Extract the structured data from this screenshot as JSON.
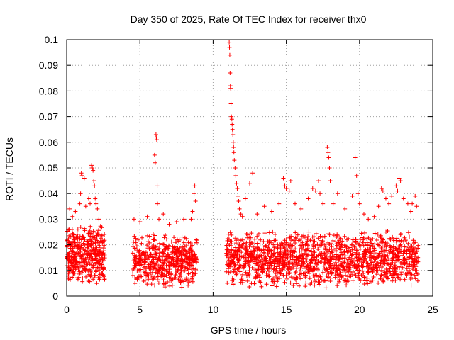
{
  "chart_data": {
    "type": "scatter",
    "title": "Day 350 of 2025, Rate Of TEC Index for receiver thx0",
    "xlabel": "GPS time / hours",
    "ylabel": "ROTI / TECUs",
    "xlim": [
      0,
      25
    ],
    "ylim": [
      0,
      0.1
    ],
    "x_ticks": [
      0,
      5,
      10,
      15,
      20,
      25
    ],
    "x_tick_labels": [
      "0",
      "5",
      "10",
      "15",
      "20",
      "25"
    ],
    "y_ticks": [
      0,
      0.01,
      0.02,
      0.03,
      0.04,
      0.05,
      0.06,
      0.07,
      0.08,
      0.09,
      0.1
    ],
    "y_tick_labels": [
      "0",
      "0.01",
      "0.02",
      "0.03",
      "0.04",
      "0.05",
      "0.06",
      "0.07",
      "0.08",
      "0.09",
      "0.1"
    ],
    "grid": true,
    "marker": "+",
    "color": "#ff0000",
    "series": [
      {
        "name": "ROTI",
        "dense_bands": [
          {
            "x_range": [
              0.0,
              2.6
            ],
            "y_range": [
              0.004,
              0.028
            ],
            "count": 420
          },
          {
            "x_range": [
              4.5,
              8.9
            ],
            "y_range": [
              0.003,
              0.025
            ],
            "count": 520
          },
          {
            "x_range": [
              10.9,
              24.0
            ],
            "y_range": [
              0.003,
              0.026
            ],
            "count": 1500
          }
        ],
        "points": [
          [
            0.2,
            0.034
          ],
          [
            0.4,
            0.031
          ],
          [
            0.6,
            0.033
          ],
          [
            0.9,
            0.036
          ],
          [
            0.95,
            0.04
          ],
          [
            1.0,
            0.048
          ],
          [
            1.05,
            0.047
          ],
          [
            1.2,
            0.046
          ],
          [
            1.3,
            0.035
          ],
          [
            1.5,
            0.038
          ],
          [
            1.6,
            0.036
          ],
          [
            1.7,
            0.051
          ],
          [
            1.75,
            0.05
          ],
          [
            1.8,
            0.049
          ],
          [
            1.85,
            0.045
          ],
          [
            1.9,
            0.043
          ],
          [
            1.95,
            0.038
          ],
          [
            2.0,
            0.036
          ],
          [
            2.1,
            0.034
          ],
          [
            2.2,
            0.03
          ],
          [
            4.6,
            0.03
          ],
          [
            5.0,
            0.029
          ],
          [
            5.5,
            0.031
          ],
          [
            6.0,
            0.055
          ],
          [
            6.05,
            0.052
          ],
          [
            6.1,
            0.063
          ],
          [
            6.12,
            0.062
          ],
          [
            6.15,
            0.061
          ],
          [
            6.18,
            0.043
          ],
          [
            6.2,
            0.036
          ],
          [
            6.3,
            0.03
          ],
          [
            6.6,
            0.032
          ],
          [
            7.0,
            0.028
          ],
          [
            7.5,
            0.029
          ],
          [
            8.0,
            0.03
          ],
          [
            8.5,
            0.03
          ],
          [
            8.6,
            0.033
          ],
          [
            8.7,
            0.04
          ],
          [
            8.75,
            0.043
          ],
          [
            8.8,
            0.037
          ],
          [
            11.1,
            0.099
          ],
          [
            11.12,
            0.097
          ],
          [
            11.14,
            0.094
          ],
          [
            11.16,
            0.087
          ],
          [
            11.18,
            0.082
          ],
          [
            11.2,
            0.081
          ],
          [
            11.22,
            0.075
          ],
          [
            11.25,
            0.07
          ],
          [
            11.28,
            0.069
          ],
          [
            11.3,
            0.067
          ],
          [
            11.32,
            0.065
          ],
          [
            11.35,
            0.063
          ],
          [
            11.38,
            0.06
          ],
          [
            11.4,
            0.058
          ],
          [
            11.42,
            0.056
          ],
          [
            11.45,
            0.053
          ],
          [
            11.5,
            0.05
          ],
          [
            11.55,
            0.047
          ],
          [
            11.6,
            0.044
          ],
          [
            11.65,
            0.042
          ],
          [
            11.7,
            0.039
          ],
          [
            11.75,
            0.037
          ],
          [
            11.8,
            0.034
          ],
          [
            11.9,
            0.032
          ],
          [
            12.0,
            0.031
          ],
          [
            12.2,
            0.038
          ],
          [
            12.5,
            0.044
          ],
          [
            12.7,
            0.048
          ],
          [
            13.0,
            0.032
          ],
          [
            13.5,
            0.035
          ],
          [
            14.0,
            0.033
          ],
          [
            14.5,
            0.036
          ],
          [
            14.8,
            0.046
          ],
          [
            14.9,
            0.043
          ],
          [
            15.0,
            0.042
          ],
          [
            15.2,
            0.041
          ],
          [
            15.3,
            0.045
          ],
          [
            15.6,
            0.036
          ],
          [
            16.0,
            0.034
          ],
          [
            16.5,
            0.038
          ],
          [
            16.8,
            0.042
          ],
          [
            17.0,
            0.041
          ],
          [
            17.2,
            0.045
          ],
          [
            17.3,
            0.04
          ],
          [
            17.5,
            0.036
          ],
          [
            17.8,
            0.058
          ],
          [
            17.85,
            0.056
          ],
          [
            17.9,
            0.054
          ],
          [
            17.95,
            0.05
          ],
          [
            18.0,
            0.045
          ],
          [
            18.2,
            0.036
          ],
          [
            18.5,
            0.04
          ],
          [
            19.0,
            0.034
          ],
          [
            19.5,
            0.039
          ],
          [
            19.7,
            0.054
          ],
          [
            19.8,
            0.047
          ],
          [
            19.9,
            0.04
          ],
          [
            20.0,
            0.036
          ],
          [
            20.3,
            0.032
          ],
          [
            20.6,
            0.03
          ],
          [
            21.0,
            0.031
          ],
          [
            21.3,
            0.035
          ],
          [
            21.5,
            0.042
          ],
          [
            21.6,
            0.041
          ],
          [
            21.8,
            0.038
          ],
          [
            22.0,
            0.036
          ],
          [
            22.2,
            0.039
          ],
          [
            22.5,
            0.043
          ],
          [
            22.6,
            0.041
          ],
          [
            22.7,
            0.046
          ],
          [
            22.8,
            0.045
          ],
          [
            23.0,
            0.038
          ],
          [
            23.3,
            0.036
          ],
          [
            23.5,
            0.033
          ],
          [
            23.6,
            0.036
          ],
          [
            23.8,
            0.039
          ],
          [
            23.9,
            0.035
          ]
        ]
      }
    ]
  }
}
